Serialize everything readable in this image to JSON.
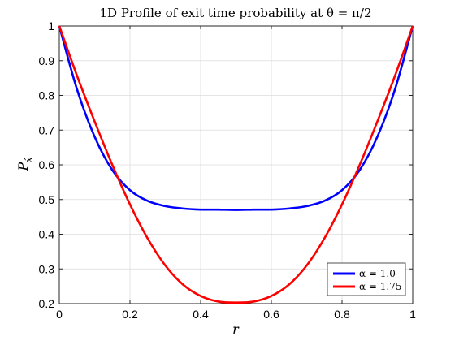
{
  "chart_data": {
    "type": "line",
    "title": "1D Profile of exit time probability at θ = π/2",
    "xlabel": "r",
    "ylabel": "P",
    "ylabel_sub": "x̂",
    "xlim": [
      0,
      1
    ],
    "ylim": [
      0.2,
      1
    ],
    "x_ticks": [
      "0",
      "0.2",
      "0.4",
      "0.6",
      "0.8",
      "1"
    ],
    "y_ticks": [
      "0.2",
      "0.3",
      "0.4",
      "0.5",
      "0.6",
      "0.7",
      "0.8",
      "0.9",
      "1"
    ],
    "grid": true,
    "legend_position": "bottom-right",
    "series": [
      {
        "name": "α = 1.0",
        "color": "#0000ff",
        "x": [
          0,
          0.05,
          0.1,
          0.15,
          0.2,
          0.25,
          0.3,
          0.35,
          0.4,
          0.45,
          0.5,
          0.55,
          0.6,
          0.65,
          0.7,
          0.75,
          0.8,
          0.85,
          0.9,
          0.95,
          1
        ],
        "values": [
          1.0,
          0.818,
          0.681,
          0.585,
          0.527,
          0.496,
          0.481,
          0.474,
          0.471,
          0.471,
          0.47,
          0.471,
          0.471,
          0.474,
          0.481,
          0.496,
          0.527,
          0.585,
          0.681,
          0.818,
          1.0
        ]
      },
      {
        "name": "α = 1.75",
        "color": "#ff0000",
        "x": [
          0,
          0.05,
          0.1,
          0.15,
          0.2,
          0.25,
          0.3,
          0.35,
          0.4,
          0.45,
          0.5,
          0.55,
          0.6,
          0.65,
          0.7,
          0.75,
          0.8,
          0.85,
          0.9,
          0.95,
          1
        ],
        "values": [
          1.0,
          0.857,
          0.725,
          0.6,
          0.486,
          0.388,
          0.31,
          0.255,
          0.222,
          0.206,
          0.203,
          0.206,
          0.222,
          0.255,
          0.31,
          0.388,
          0.486,
          0.6,
          0.725,
          0.857,
          1.0
        ]
      }
    ]
  }
}
